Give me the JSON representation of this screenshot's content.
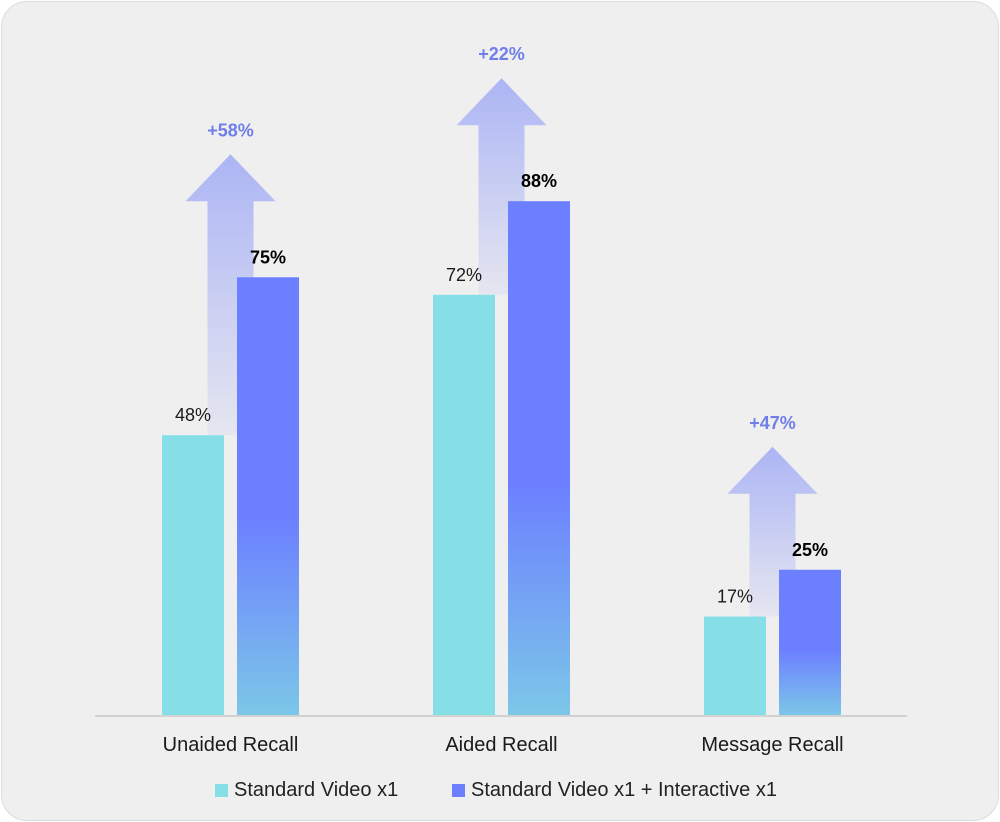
{
  "chart_data": {
    "type": "bar",
    "categories": [
      "Unaided Recall",
      "Aided Recall",
      "Message Recall"
    ],
    "series": [
      {
        "name": "Standard Video x1",
        "values": [
          48,
          72,
          17
        ],
        "labels": [
          "48%",
          "72%",
          "17%"
        ],
        "color": "#86dfe6"
      },
      {
        "name": "Standard Video x1 + Interactive x1",
        "values": [
          75,
          88,
          25
        ],
        "labels": [
          "75%",
          "88%",
          "25%"
        ],
        "color": "#6c80ff",
        "gradient_bottom_color": "#7cc7e8"
      }
    ],
    "uplift_labels": [
      "+58%",
      "+22%",
      "+47%"
    ],
    "uplift_color": "#6f7ee8",
    "arrow_color": "#a9b2f5",
    "ylim": [
      0,
      100
    ],
    "grid": false,
    "legend_position": "bottom"
  },
  "legend": {
    "items": [
      {
        "label": "Standard Video x1",
        "color": "#86dfe6"
      },
      {
        "label": "Standard Video x1 + Interactive x1",
        "color": "#6c80ff"
      }
    ]
  }
}
